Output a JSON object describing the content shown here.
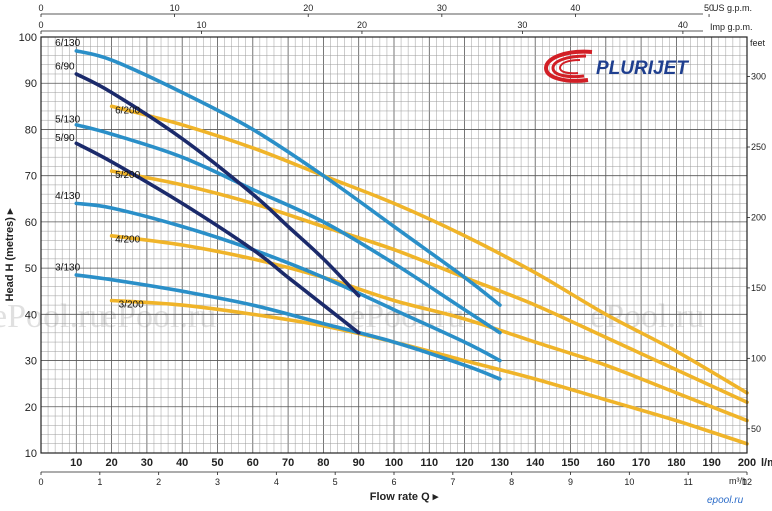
{
  "brand": {
    "logo_text": "PLURIJET",
    "logo_color": "#1f3f8f",
    "swoosh_color": "#d21f26"
  },
  "watermark": "ePool.ru",
  "corner_mark": "epool.ru",
  "colors": {
    "series_130": "#2a8fc8",
    "series_90": "#1b2a6b",
    "series_200": "#f0b429"
  },
  "chart_data": {
    "type": "line",
    "xlabel": "Flow rate Q",
    "ylabel": "Head H  (metres)",
    "xlim": [
      0,
      200
    ],
    "ylim": [
      10,
      100
    ],
    "x_ticks": [
      10,
      20,
      30,
      40,
      50,
      60,
      70,
      80,
      90,
      100,
      110,
      120,
      130,
      140,
      150,
      160,
      170,
      180,
      190,
      200
    ],
    "x_unit": "l/min",
    "y_ticks": [
      10,
      20,
      30,
      40,
      50,
      60,
      70,
      80,
      90,
      100
    ],
    "secondary_axes": {
      "m3h": {
        "unit": "m³/h",
        "ticks": [
          0,
          1,
          2,
          3,
          4,
          5,
          6,
          7,
          8,
          9,
          10,
          11,
          12
        ]
      },
      "us_gpm": {
        "unit": "US g.p.m.",
        "ticks": [
          0,
          10,
          20,
          30,
          40,
          50
        ]
      },
      "imp_gpm": {
        "unit": "Imp g.p.m.",
        "ticks": [
          0,
          10,
          20,
          30,
          40
        ]
      },
      "feet": {
        "unit": "feet",
        "ticks": [
          50,
          100,
          150,
          200,
          250,
          300
        ]
      }
    },
    "grid": true,
    "series": [
      {
        "name": "6/130",
        "group": "130",
        "label_x": 4,
        "label_y": 98,
        "x": [
          10,
          20,
          40,
          60,
          80,
          100,
          120,
          130
        ],
        "y": [
          97,
          95,
          88,
          80,
          70,
          59,
          48,
          42
        ]
      },
      {
        "name": "6/90",
        "group": "90",
        "label_x": 4,
        "label_y": 93,
        "x": [
          10,
          20,
          40,
          60,
          70,
          80,
          90
        ],
        "y": [
          92,
          88,
          78,
          66,
          59,
          52,
          44
        ]
      },
      {
        "name": "6/200",
        "group": "200",
        "label_x": 21,
        "label_y": 83.5,
        "x": [
          20,
          40,
          60,
          80,
          100,
          120,
          140,
          160,
          180,
          200
        ],
        "y": [
          85,
          81,
          76,
          70,
          64,
          57,
          49,
          40,
          32,
          23
        ]
      },
      {
        "name": "5/130",
        "group": "130",
        "label_x": 4,
        "label_y": 81.5,
        "x": [
          10,
          20,
          40,
          60,
          80,
          100,
          120,
          130
        ],
        "y": [
          81,
          79,
          74,
          67,
          60,
          51,
          41,
          36
        ]
      },
      {
        "name": "5/90",
        "group": "90",
        "label_x": 4,
        "label_y": 77.5,
        "x": [
          10,
          20,
          40,
          60,
          70,
          80,
          90
        ],
        "y": [
          77,
          73,
          64,
          54,
          48,
          42,
          36
        ]
      },
      {
        "name": "5/200",
        "group": "200",
        "label_x": 21,
        "label_y": 69.5,
        "x": [
          20,
          40,
          60,
          80,
          100,
          120,
          140,
          160,
          180,
          200
        ],
        "y": [
          71,
          68,
          64,
          59,
          54,
          48,
          42,
          35,
          28,
          21
        ]
      },
      {
        "name": "4/130",
        "group": "130",
        "label_x": 4,
        "label_y": 65,
        "x": [
          10,
          20,
          40,
          60,
          80,
          100,
          120,
          130
        ],
        "y": [
          64,
          63,
          59,
          54,
          48,
          41,
          34,
          30
        ]
      },
      {
        "name": "4/200",
        "group": "200",
        "label_x": 21,
        "label_y": 55.5,
        "x": [
          20,
          40,
          60,
          80,
          100,
          120,
          140,
          160,
          180,
          200
        ],
        "y": [
          57,
          55,
          52,
          48,
          43,
          39,
          34,
          29,
          23,
          17
        ]
      },
      {
        "name": "3/130",
        "group": "130",
        "label_x": 4,
        "label_y": 49.5,
        "x": [
          10,
          20,
          40,
          60,
          80,
          100,
          120,
          130
        ],
        "y": [
          48.5,
          47.5,
          45,
          42,
          38,
          34,
          29,
          26
        ]
      },
      {
        "name": "3/200",
        "group": "200",
        "label_x": 22,
        "label_y": 41.5,
        "x": [
          20,
          40,
          60,
          80,
          100,
          120,
          140,
          160,
          180,
          200
        ],
        "y": [
          43,
          42,
          40,
          37.5,
          34,
          30,
          26,
          21.5,
          17,
          12
        ]
      }
    ]
  }
}
